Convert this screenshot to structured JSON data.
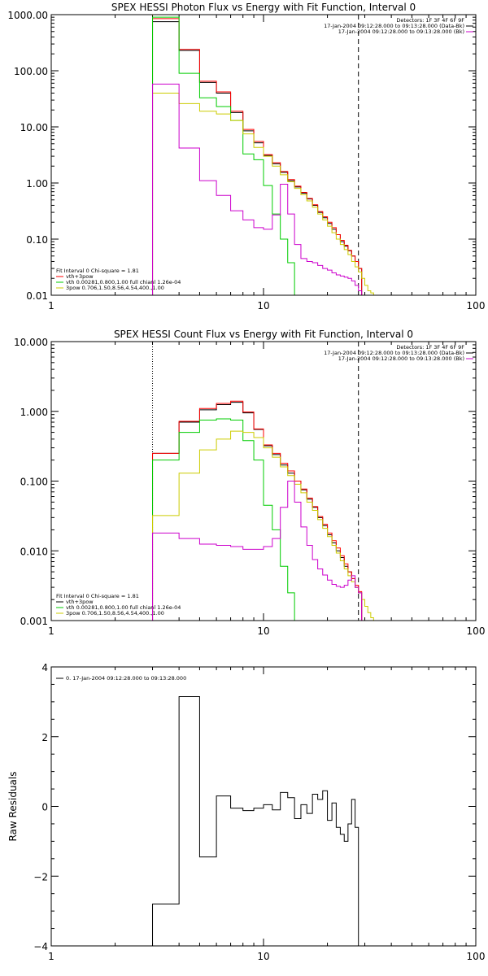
{
  "chart_data": [
    {
      "type": "line",
      "title": "SPEX HESSI Photon Flux vs Energy with Fit Function, Interval 0",
      "xscale": "log",
      "yscale": "log",
      "xlim": [
        1,
        100
      ],
      "ylim": [
        0.01,
        1000
      ],
      "xticks": [
        1,
        10,
        100
      ],
      "xtick_labels": [
        "1",
        "10",
        "100"
      ],
      "yticks": [
        0.01,
        0.1,
        1,
        10,
        100,
        1000
      ],
      "ytick_labels": [
        "0.01",
        "0.10",
        "1.00",
        "10.00",
        "100.00",
        "1000.00"
      ],
      "ylabel": "",
      "xlabel": "",
      "vlines": [
        {
          "x": 3,
          "style": "dotted",
          "color": "#c8a400"
        },
        {
          "x": 28,
          "style": "dashed",
          "color": "#000000"
        }
      ],
      "legend_top_right": [
        {
          "text": "Detectors: 1F 3F 4F 6F 9F",
          "color": ""
        },
        {
          "text": "17-Jan-2004 09:12:28.000 to 09:13:28.000 (Data-Bk)",
          "color": "#000000"
        },
        {
          "text": "17-Jan-2004 09:12:28.000 to 09:13:28.000 (Bk)",
          "color": "#cc00cc"
        }
      ],
      "legend_bottom_left": [
        {
          "text": "Fit Interval 0   Chi-square = 1.81",
          "color": ""
        },
        {
          "text": "vth+3pow",
          "color": "#ff0000"
        },
        {
          "text": "vth 0.00281,0.800,1.00  full chianl 1.26e-04",
          "color": "#00cc00"
        },
        {
          "text": "3pow 0.706,1.50,8.56,4.54,400.,1.00",
          "color": "#cccc00"
        }
      ],
      "bin_edges": [
        3,
        4,
        5,
        6,
        7,
        8,
        9,
        10,
        11,
        12,
        13,
        14,
        15,
        16,
        17,
        18,
        19,
        20,
        21,
        22,
        23,
        24,
        25,
        26,
        27,
        28,
        29,
        30,
        31,
        32,
        33,
        34
      ],
      "series": [
        {
          "color": "#000000",
          "values": [
            750,
            230,
            62,
            40,
            18,
            8.5,
            5.2,
            3.1,
            2.2,
            1.55,
            1.1,
            0.85,
            0.66,
            0.52,
            0.4,
            0.3,
            0.24,
            0.19,
            0.15,
            0.12,
            0.09,
            0.075,
            0.062,
            0.05,
            0.04,
            0.03
          ]
        },
        {
          "color": "#ff0000",
          "values": [
            850,
            240,
            65,
            42,
            19,
            9,
            5.5,
            3.2,
            2.3,
            1.6,
            1.15,
            0.88,
            0.68,
            0.53,
            0.41,
            0.31,
            0.25,
            0.2,
            0.16,
            0.12,
            0.095,
            0.078,
            0.063,
            0.05,
            0.04,
            0.03
          ]
        },
        {
          "color": "#00cc00",
          "values": [
            900,
            90,
            33,
            23,
            13,
            3.3,
            2.6,
            0.9,
            0.28,
            0.1,
            0.038,
            0.01
          ]
        },
        {
          "color": "#cccc00",
          "values": [
            40,
            26,
            19,
            17,
            13,
            7.5,
            4.3,
            3.0,
            2.0,
            1.4,
            1.05,
            0.8,
            0.62,
            0.48,
            0.37,
            0.28,
            0.22,
            0.17,
            0.13,
            0.1,
            0.08,
            0.065,
            0.053,
            0.04,
            0.032,
            0.026,
            0.02,
            0.015,
            0.012,
            0.011,
            0.01
          ]
        },
        {
          "color": "#cc00cc",
          "values": [
            58,
            4.2,
            1.1,
            0.6,
            0.32,
            0.22,
            0.16,
            0.15,
            0.27,
            0.95,
            0.28,
            0.08,
            0.045,
            0.04,
            0.038,
            0.034,
            0.03,
            0.028,
            0.025,
            0.023,
            0.022,
            0.021,
            0.02,
            0.018,
            0.015,
            0.012
          ]
        }
      ]
    },
    {
      "type": "line",
      "title": "SPEX HESSI Count Flux vs Energy with Fit Function, Interval 0",
      "xscale": "log",
      "yscale": "log",
      "xlim": [
        1,
        100
      ],
      "ylim": [
        0.001,
        10
      ],
      "xticks": [
        1,
        10,
        100
      ],
      "xtick_labels": [
        "1",
        "10",
        "100"
      ],
      "yticks": [
        0.001,
        0.01,
        0.1,
        1,
        10
      ],
      "ytick_labels": [
        "0.001",
        "0.010",
        "0.100",
        "1.000",
        "10.000"
      ],
      "ylabel": "",
      "xlabel": "",
      "vlines": [
        {
          "x": 3,
          "style": "dotted",
          "color": "#000000"
        },
        {
          "x": 28,
          "style": "dashed",
          "color": "#000000"
        }
      ],
      "legend_top_right": [
        {
          "text": "Detectors: 1F 3F 4F 6F 9F",
          "color": ""
        },
        {
          "text": "17-Jan-2004 09:12:28.000 to 09:13:28.000 (Data-Bk)",
          "color": "#000000"
        },
        {
          "text": "17-Jan-2004 09:12:28.000 to 09:13:28.000 (Bk)",
          "color": "#cc00cc"
        }
      ],
      "legend_bottom_left": [
        {
          "text": "Fit Interval 0   Chi-square = 1.81",
          "color": ""
        },
        {
          "text": "vth+3pow",
          "color": "#000000"
        },
        {
          "text": "vth 0.00281,0.800,1.00  full chianl 1.26e-04",
          "color": "#00cc00"
        },
        {
          "text": "3pow 0.706,1.50,8.56,4.54,400.,1.00",
          "color": "#cccc00"
        }
      ],
      "bin_edges": [
        3,
        4,
        5,
        6,
        7,
        8,
        9,
        10,
        11,
        12,
        13,
        14,
        15,
        16,
        17,
        18,
        19,
        20,
        21,
        22,
        23,
        24,
        25,
        26,
        27,
        28,
        29,
        30,
        31,
        32,
        33,
        34,
        35,
        36
      ],
      "series": [
        {
          "color": "#000000",
          "values": [
            0.25,
            0.7,
            1.05,
            1.25,
            1.35,
            0.95,
            0.55,
            0.32,
            0.24,
            0.17,
            0.13,
            0.1,
            0.075,
            0.055,
            0.042,
            0.03,
            0.023,
            0.017,
            0.013,
            0.01,
            0.008,
            0.006,
            0.005,
            0.004,
            0.003,
            0.0025
          ]
        },
        {
          "color": "#ff0000",
          "values": [
            0.25,
            0.72,
            1.1,
            1.3,
            1.4,
            0.98,
            0.56,
            0.33,
            0.25,
            0.18,
            0.14,
            0.1,
            0.077,
            0.057,
            0.043,
            0.031,
            0.024,
            0.018,
            0.014,
            0.011,
            0.0085,
            0.0065,
            0.005,
            0.004,
            0.0032,
            0.0026
          ]
        },
        {
          "color": "#00cc00",
          "values": [
            0.2,
            0.5,
            0.75,
            0.78,
            0.75,
            0.38,
            0.2,
            0.045,
            0.02,
            0.006,
            0.0025,
            0.001
          ]
        },
        {
          "color": "#cccc00",
          "values": [
            0.032,
            0.13,
            0.28,
            0.4,
            0.52,
            0.5,
            0.42,
            0.3,
            0.22,
            0.16,
            0.12,
            0.09,
            0.068,
            0.05,
            0.038,
            0.028,
            0.021,
            0.016,
            0.012,
            0.0093,
            0.0072,
            0.0055,
            0.0044,
            0.0036,
            0.003,
            0.0025,
            0.002,
            0.0016,
            0.0013,
            0.0011,
            0.001,
            0.001,
            0.001
          ]
        },
        {
          "color": "#cc00cc",
          "values": [
            0.018,
            0.015,
            0.0125,
            0.012,
            0.0115,
            0.0105,
            0.0105,
            0.0115,
            0.015,
            0.042,
            0.1,
            0.05,
            0.022,
            0.012,
            0.0075,
            0.0055,
            0.0045,
            0.0038,
            0.0033,
            0.0031,
            0.003,
            0.0032,
            0.0038,
            0.0044,
            0.003,
            0.0025
          ]
        }
      ]
    },
    {
      "type": "line",
      "title": "",
      "xscale": "log",
      "yscale": "linear",
      "xlim": [
        1,
        100
      ],
      "ylim": [
        -4,
        4
      ],
      "xticks": [
        1,
        10,
        100
      ],
      "xtick_labels": [
        "1",
        "10",
        "100"
      ],
      "yticks": [
        -4,
        -2,
        0,
        2,
        4
      ],
      "ytick_labels": [
        "−4",
        "−2",
        "0",
        "2",
        "4"
      ],
      "ylabel": "Raw Residuals",
      "xlabel": "",
      "vlines": [],
      "legend_top_right": [],
      "legend_bottom_left": [],
      "legend_top_left": [
        {
          "text": "0. 17-Jan-2004 09:12:28.000 to 09:13:28.000",
          "color": "#000000"
        }
      ],
      "bin_edges": [
        3,
        4,
        5,
        6,
        7,
        8,
        9,
        10,
        11,
        12,
        13,
        14,
        15,
        16,
        17,
        18,
        19,
        20,
        21,
        22,
        23,
        24,
        25,
        26,
        27,
        28
      ],
      "series": [
        {
          "color": "#000000",
          "values": [
            -2.8,
            3.15,
            -1.45,
            0.3,
            -0.05,
            -0.12,
            -0.05,
            0.05,
            -0.1,
            0.4,
            0.25,
            -0.35,
            0.05,
            -0.2,
            0.35,
            0.2,
            0.45,
            -0.4,
            0.1,
            -0.6,
            -0.8,
            -1.0,
            -0.5,
            0.2,
            -0.6
          ]
        }
      ]
    }
  ]
}
